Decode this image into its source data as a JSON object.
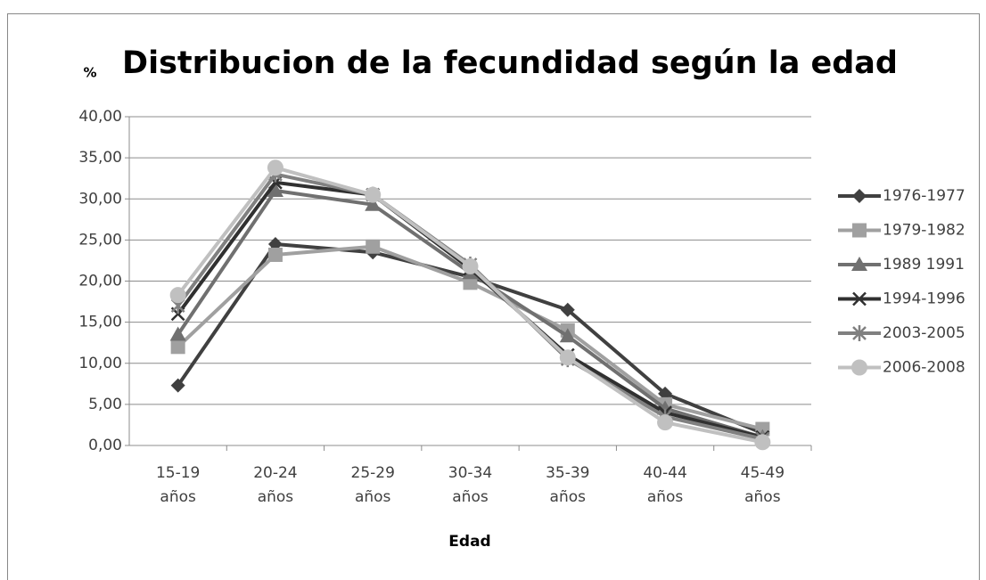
{
  "chart_data": {
    "type": "line",
    "title": "Distribucion de la fecundidad según la edad",
    "y_label": "%",
    "x_label": "Edad",
    "categories": [
      "15-19 años",
      "20-24 años",
      "25-29 años",
      "30-34 años",
      "35-39 años",
      "40-44 años",
      "45-49 años"
    ],
    "ylim": [
      0,
      40
    ],
    "yticks": [
      {
        "value": 0,
        "label": "0,00"
      },
      {
        "value": 5,
        "label": "5,00"
      },
      {
        "value": 10,
        "label": "10,00"
      },
      {
        "value": 15,
        "label": "15,00"
      },
      {
        "value": 20,
        "label": "20,00"
      },
      {
        "value": 25,
        "label": "25,00"
      },
      {
        "value": 30,
        "label": "30,00"
      },
      {
        "value": 35,
        "label": "35,00"
      },
      {
        "value": 40,
        "label": "40,00"
      }
    ],
    "grid": true,
    "legend": "right",
    "series": [
      {
        "name": "1976-1977",
        "color": "#404040",
        "marker": "diamond",
        "values": [
          7.3,
          24.5,
          23.5,
          20.5,
          16.5,
          6.3,
          1.5
        ]
      },
      {
        "name": "1979-1982",
        "color": "#a0a0a0",
        "marker": "square",
        "values": [
          12.0,
          23.2,
          24.2,
          19.8,
          14.0,
          5.0,
          2.0
        ]
      },
      {
        "name": "1989 1991",
        "color": "#707070",
        "marker": "triangle",
        "values": [
          13.5,
          31.0,
          29.3,
          21.0,
          13.3,
          4.5,
          1.0
        ]
      },
      {
        "name": "1994-1996",
        "color": "#303030",
        "marker": "x",
        "values": [
          16.0,
          32.0,
          30.5,
          21.5,
          11.0,
          4.0,
          1.0
        ]
      },
      {
        "name": "2003-2005",
        "color": "#808080",
        "marker": "star",
        "values": [
          17.0,
          33.0,
          30.5,
          22.0,
          10.5,
          3.5,
          0.8
        ]
      },
      {
        "name": "2006-2008",
        "color": "#c0c0c0",
        "marker": "circle",
        "values": [
          18.3,
          33.8,
          30.5,
          21.8,
          10.7,
          2.8,
          0.4
        ]
      }
    ]
  }
}
